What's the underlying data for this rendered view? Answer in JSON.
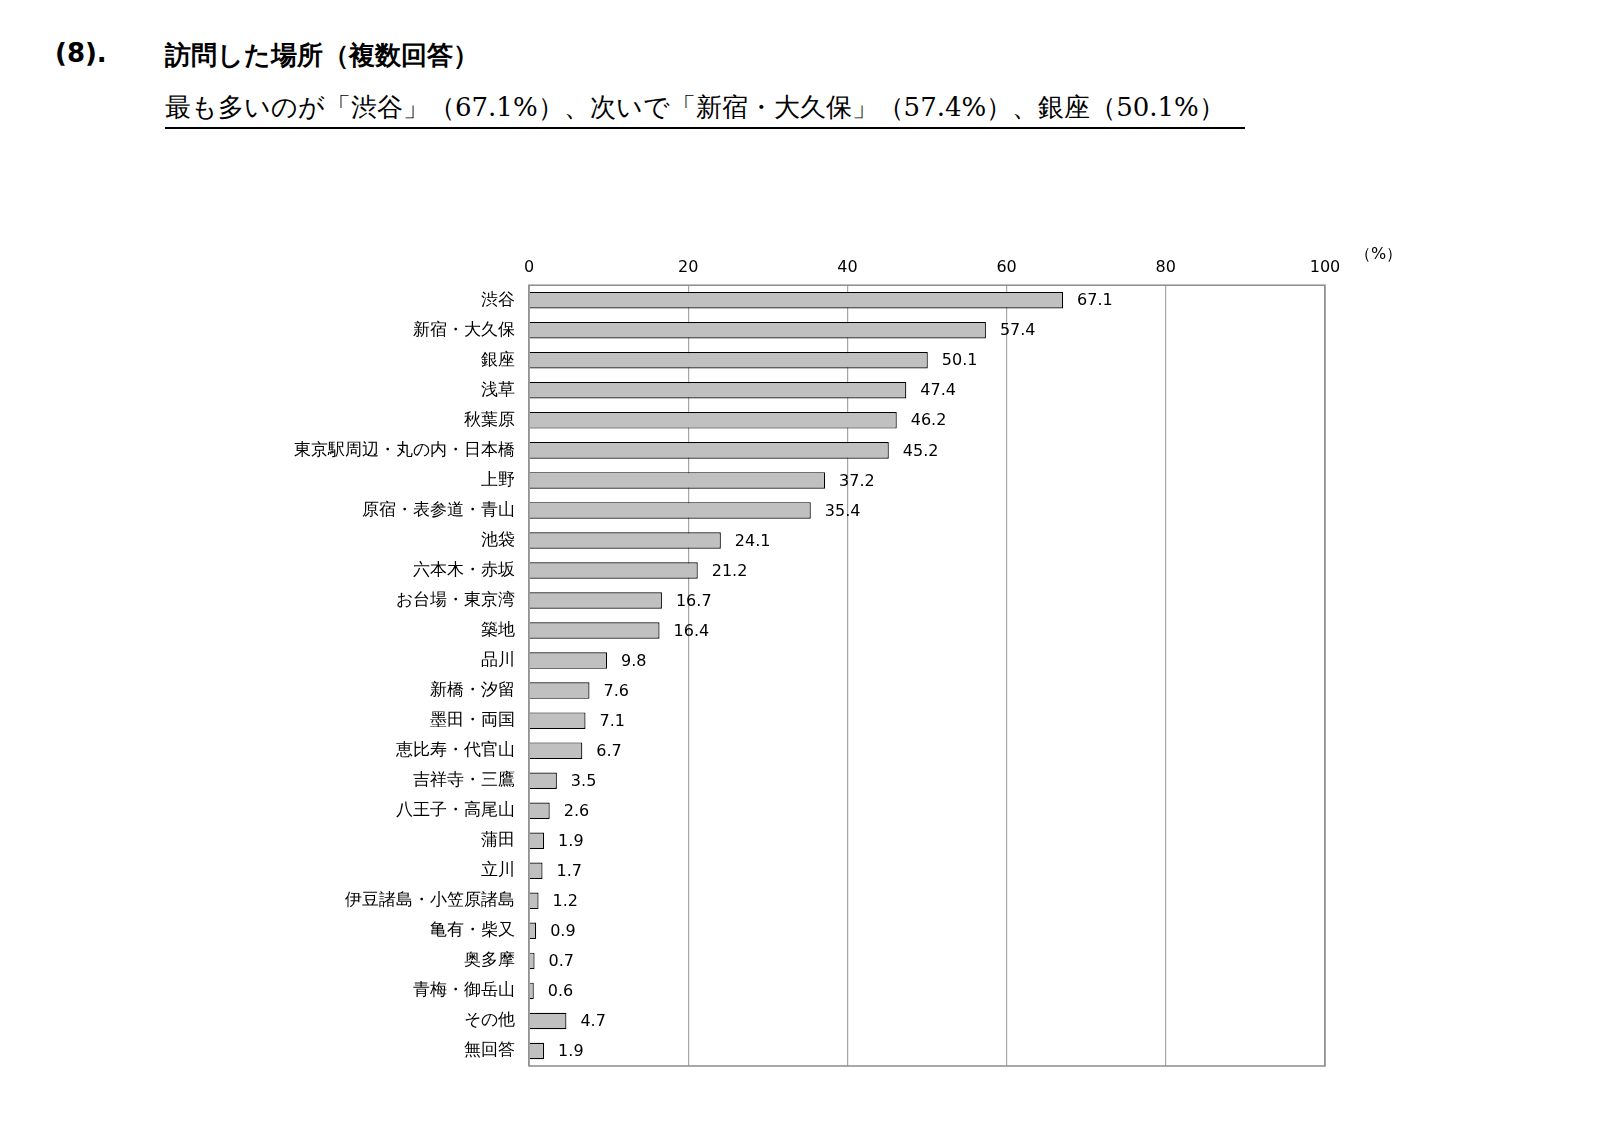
{
  "chart_data": {
    "type": "bar",
    "orientation": "horizontal",
    "annotations": [
      "(8)."
    ],
    "title": "訪問した場所（複数回答）",
    "subtitle": "最も多いのが「渋谷」（67.1%）、次いで「新宿・大久保」（57.4%）、銀座（50.1%）",
    "xlabel": "（%）",
    "categories": [
      "渋谷",
      "新宿・大久保",
      "銀座",
      "浅草",
      "秋葉原",
      "東京駅周辺・丸の内・日本橋",
      "上野",
      "原宿・表参道・青山",
      "池袋",
      "六本木・赤坂",
      "お台場・東京湾",
      "築地",
      "品川",
      "新橋・汐留",
      "墨田・両国",
      "恵比寿・代官山",
      "吉祥寺・三鷹",
      "八王子・高尾山",
      "蒲田",
      "立川",
      "伊豆諸島・小笠原諸島",
      "亀有・柴又",
      "奥多摩",
      "青梅・御岳山",
      "その他",
      "無回答"
    ],
    "values": [
      67.1,
      57.4,
      50.1,
      47.4,
      46.2,
      45.2,
      37.2,
      35.4,
      24.1,
      21.2,
      16.7,
      16.4,
      9.8,
      7.6,
      7.1,
      6.7,
      3.5,
      2.6,
      1.9,
      1.7,
      1.2,
      0.9,
      0.7,
      0.6,
      4.7,
      1.9
    ],
    "color": "#c0c0c0",
    "xlim": [
      0,
      100
    ],
    "xticks": [
      0,
      20,
      40,
      60,
      80,
      100
    ],
    "grid": true,
    "data_labels": true
  }
}
